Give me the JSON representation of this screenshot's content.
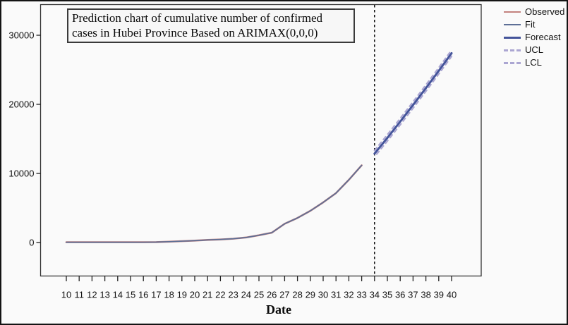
{
  "figure": {
    "title_line1": "Prediction chart of cumulative number of confirmed",
    "title_line2": "cases in Hubei Province Based on ARIMAX(0,0,0)",
    "xlabel": "Date",
    "background_color": "#fafafa",
    "border_color": "#141414"
  },
  "legend": {
    "position": "top-right",
    "items": [
      {
        "name": "observed",
        "label": "Observed",
        "color": "#c4827f",
        "style": "solid",
        "weight": 2.6
      },
      {
        "name": "fit",
        "label": "Fit",
        "color": "#5d6f96",
        "style": "solid",
        "weight": 1.7
      },
      {
        "name": "forecast",
        "label": "Forecast",
        "color": "#44549a",
        "style": "solid",
        "weight": 3
      },
      {
        "name": "ucl",
        "label": "UCL",
        "color": "#aba6d2",
        "style": "dashed",
        "weight": 2.2
      },
      {
        "name": "lcl",
        "label": "LCL",
        "color": "#aba6d2",
        "style": "dashed",
        "weight": 2.2
      }
    ]
  },
  "chart_data": {
    "type": "line",
    "title": "Prediction chart of cumulative number of confirmed cases in Hubei Province Based on ARIMAX(0,0,0)",
    "xlabel": "Date",
    "ylabel": "",
    "grid": false,
    "legend_position": "top-right",
    "x_ticks": [
      10,
      11,
      12,
      13,
      14,
      15,
      16,
      17,
      18,
      19,
      20,
      21,
      22,
      23,
      24,
      25,
      26,
      27,
      28,
      29,
      30,
      31,
      32,
      33,
      34,
      35,
      36,
      37,
      38,
      39,
      40
    ],
    "y_ticks": [
      0,
      10000,
      20000,
      30000
    ],
    "xlim": [
      8,
      42.3
    ],
    "ylim": [
      -4700,
      34500
    ],
    "forecast_divider_x": 34,
    "series": [
      {
        "name": "Observed",
        "x": [
          10,
          11,
          12,
          13,
          14,
          15,
          16,
          17,
          18,
          19,
          20,
          21,
          22,
          23,
          24,
          25,
          26,
          27,
          28,
          29,
          30,
          31,
          32,
          33
        ],
        "values": [
          41,
          41,
          41,
          41,
          41,
          41,
          45,
          62,
          121,
          198,
          270,
          375,
          444,
          549,
          729,
          1052,
          1423,
          2714,
          3554,
          4586,
          5806,
          7153,
          9074,
          11177
        ]
      },
      {
        "name": "Fit",
        "x": [
          10,
          11,
          12,
          13,
          14,
          15,
          16,
          17,
          18,
          19,
          20,
          21,
          22,
          23,
          24,
          25,
          26,
          27,
          28,
          29,
          30,
          31,
          32,
          33
        ],
        "values": [
          41,
          41,
          41,
          41,
          41,
          41,
          45,
          62,
          121,
          198,
          270,
          375,
          444,
          549,
          729,
          1052,
          1423,
          2714,
          3554,
          4586,
          5806,
          7153,
          9074,
          11177
        ]
      },
      {
        "name": "Forecast",
        "x": [
          34,
          35,
          36,
          37,
          38,
          39,
          40
        ],
        "values": [
          12860,
          15150,
          17500,
          19900,
          22350,
          24850,
          27400
        ]
      },
      {
        "name": "UCL",
        "x": [
          34,
          35,
          36,
          37,
          38,
          39,
          40
        ],
        "values": [
          13210,
          15500,
          17850,
          20250,
          22700,
          25200,
          27750
        ]
      },
      {
        "name": "LCL",
        "x": [
          34,
          35,
          36,
          37,
          38,
          39,
          40
        ],
        "values": [
          12510,
          14800,
          17150,
          19550,
          22000,
          24500,
          27050
        ]
      }
    ]
  }
}
